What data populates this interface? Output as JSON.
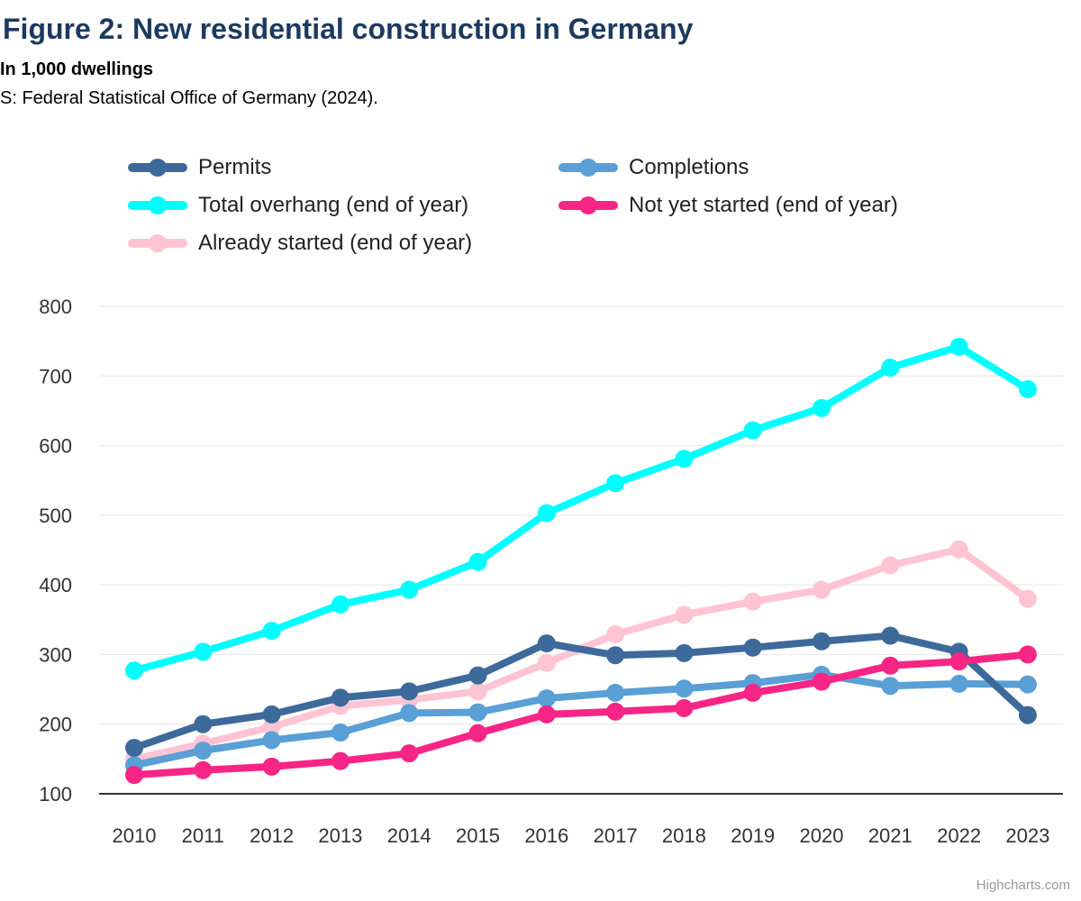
{
  "header": {
    "title": "Figure 2: New residential construction in Germany",
    "subtitle": "In 1,000 dwellings",
    "source": "S: Federal Statistical Office of Germany (2024)."
  },
  "credit": "Highcharts.com",
  "chart_data": {
    "type": "line",
    "title": "Figure 2: New residential construction in Germany",
    "subtitle": "In 1,000 dwellings",
    "xlabel": "",
    "ylabel": "",
    "categories": [
      "2010",
      "2011",
      "2012",
      "2013",
      "2014",
      "2015",
      "2016",
      "2017",
      "2018",
      "2019",
      "2020",
      "2021",
      "2022",
      "2023"
    ],
    "ylim": [
      100,
      800
    ],
    "yticks": [
      100,
      200,
      300,
      400,
      500,
      600,
      700,
      800
    ],
    "grid": true,
    "legend_position": "top",
    "series": [
      {
        "name": "Permits",
        "color": "#3d6a9a",
        "values": [
          166,
          200,
          214,
          238,
          247,
          270,
          316,
          299,
          302,
          310,
          319,
          327,
          304,
          213
        ]
      },
      {
        "name": "Completions",
        "color": "#5a9fd6",
        "values": [
          141,
          162,
          177,
          188,
          216,
          217,
          237,
          245,
          251,
          259,
          271,
          255,
          258,
          257
        ]
      },
      {
        "name": "Total overhang (end of year)",
        "color": "#00ffff",
        "values": [
          277,
          304,
          334,
          372,
          393,
          433,
          503,
          546,
          581,
          622,
          654,
          712,
          742,
          681
        ]
      },
      {
        "name": "Not yet started (end of year)",
        "color": "#f72585",
        "values": [
          127,
          134,
          139,
          147,
          158,
          187,
          214,
          218,
          223,
          245,
          261,
          284,
          290,
          300
        ]
      },
      {
        "name": "Already started (end of year)",
        "color": "#ffc4d4",
        "values": [
          150,
          172,
          196,
          226,
          235,
          247,
          288,
          329,
          357,
          376,
          393,
          428,
          451,
          380
        ]
      }
    ]
  }
}
